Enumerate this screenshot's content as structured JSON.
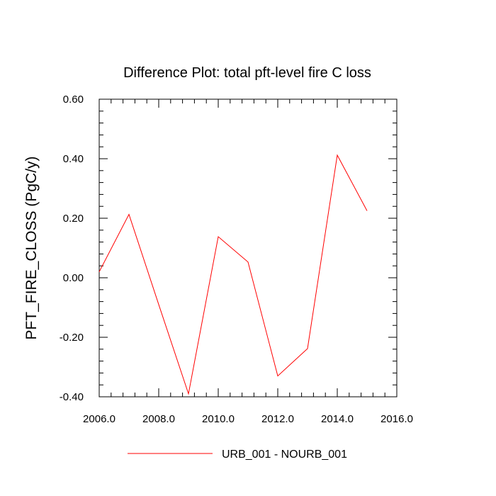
{
  "chart_data": {
    "type": "line",
    "title": "Difference Plot: total pft-level fire C loss",
    "xlabel": "",
    "ylabel": "PFT_FIRE_CLOSS  (PgC/y)",
    "xlim": [
      2006.0,
      2016.0
    ],
    "ylim": [
      -0.4,
      0.6
    ],
    "x_ticks": [
      2006.0,
      2008.0,
      2010.0,
      2012.0,
      2014.0,
      2016.0
    ],
    "x_tick_labels": [
      "2006.0",
      "2008.0",
      "2010.0",
      "2012.0",
      "2014.0",
      "2016.0"
    ],
    "y_ticks": [
      0.6,
      0.4,
      0.2,
      0.0,
      -0.2,
      -0.4
    ],
    "y_tick_labels": [
      "0.60",
      "0.40",
      "0.20",
      "0.00",
      "-0.20",
      "-0.40"
    ],
    "x_minor_step": 0.4,
    "y_minor_step": 0.04,
    "grid": false,
    "legend_position": "bottom",
    "series": [
      {
        "name": "URB_001 - NOURB_001",
        "color": "#ff0000",
        "x": [
          2006,
          2007,
          2008,
          2009,
          2010,
          2011,
          2012,
          2013,
          2014,
          2015
        ],
        "values": [
          0.02,
          0.213,
          -0.09,
          -0.39,
          0.138,
          0.053,
          -0.33,
          -0.238,
          0.412,
          0.225
        ]
      }
    ]
  }
}
